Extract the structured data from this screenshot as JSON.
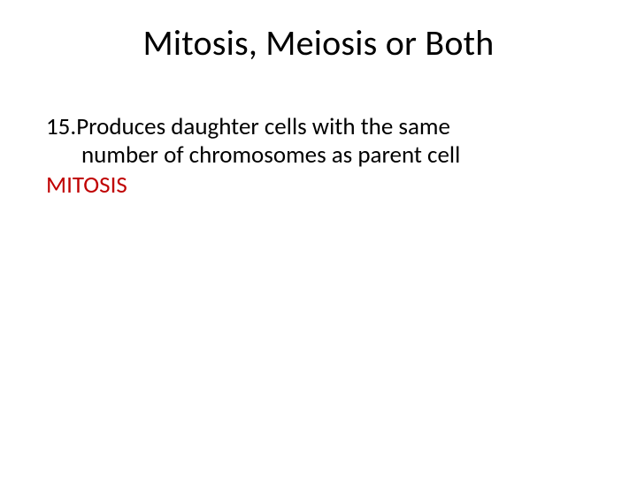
{
  "slide": {
    "title": "Mitosis, Meiosis or Both",
    "question_number": "15.",
    "question_line1": "Produces daughter cells with the same",
    "question_line2": "number of chromosomes as parent cell",
    "answer": "MITOSIS"
  },
  "style": {
    "background_color": "#ffffff",
    "title_color": "#000000",
    "title_fontsize": 40,
    "body_color": "#000000",
    "body_fontsize": 27,
    "answer_color": "#c00000",
    "font_family": "Calibri"
  }
}
